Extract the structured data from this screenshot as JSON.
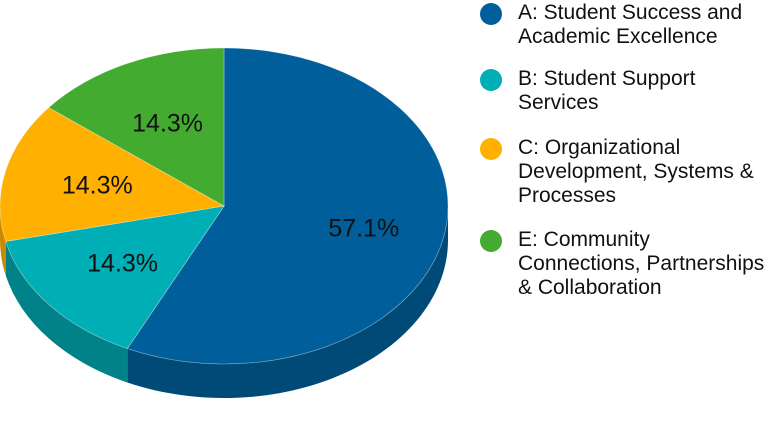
{
  "chart_data": {
    "type": "pie",
    "three_d": true,
    "legend_position": "right",
    "slices": [
      {
        "label": "A: Student Success and Academic Excellence",
        "value": 57.1,
        "value_label": "57.1%",
        "color": "#005f9a",
        "side_color": "#004a78"
      },
      {
        "label": "B: Student Support Services",
        "value": 14.3,
        "value_label": "14.3%",
        "color": "#00afb5",
        "side_color": "#008288"
      },
      {
        "label": "C: Organizational Development, Systems & Processes",
        "value": 14.3,
        "value_label": "14.3%",
        "color": "#ffb000",
        "side_color": "#c98a00"
      },
      {
        "label": "E: Community Connections, Partnerships & Collaboration",
        "value": 14.3,
        "value_label": "14.3%",
        "color": "#43ab2f",
        "side_color": "#32821f"
      }
    ]
  }
}
